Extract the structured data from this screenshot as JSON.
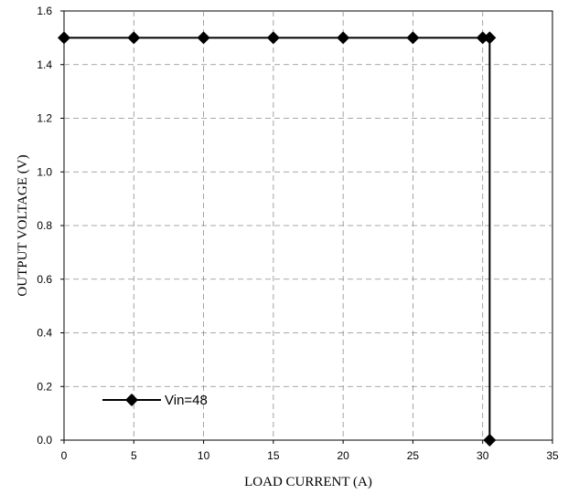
{
  "chart_data": {
    "type": "line",
    "title": "",
    "xlabel": "LOAD CURRENT (A)",
    "ylabel": "OUTPUT VOLTAGE (V)",
    "xlim": [
      0,
      35
    ],
    "ylim": [
      0,
      1.6
    ],
    "xticks": [
      0,
      5,
      10,
      15,
      20,
      25,
      30,
      35
    ],
    "yticks": [
      0.0,
      0.2,
      0.4,
      0.6,
      0.8,
      1.0,
      1.2,
      1.4,
      1.6
    ],
    "xtick_labels": [
      "0",
      "5",
      "10",
      "15",
      "20",
      "25",
      "30",
      "35"
    ],
    "ytick_labels": [
      "0.0",
      "0.2",
      "0.4",
      "0.6",
      "0.8",
      "1.0",
      "1.2",
      "1.4",
      "1.6"
    ],
    "grid": true,
    "legend_position": "bottom-left",
    "series": [
      {
        "name": "Vin=48",
        "color": "#000000",
        "marker": "diamond",
        "x": [
          0,
          5,
          10,
          15,
          20,
          25,
          30,
          30.5,
          30.5
        ],
        "y": [
          1.5,
          1.5,
          1.5,
          1.5,
          1.5,
          1.5,
          1.5,
          1.5,
          0.0
        ]
      }
    ]
  }
}
